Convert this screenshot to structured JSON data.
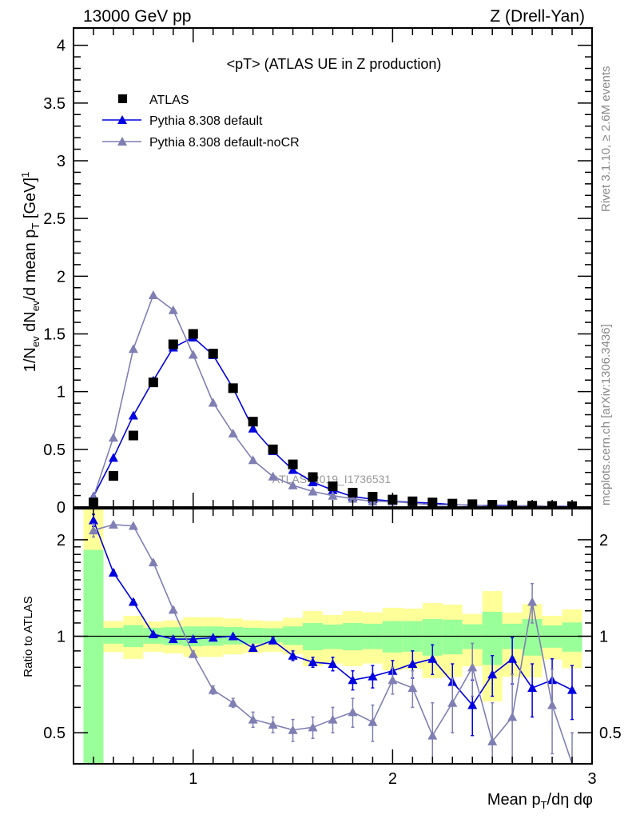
{
  "header": {
    "left": "13000 GeV pp",
    "right": "Z (Drell-Yan)"
  },
  "side_text": {
    "rivet": "Rivet 3.1.10, ≥ 2.6M events",
    "mcplots": "mcplots.cern.ch [arXiv:1306.3436]"
  },
  "watermark": "ATLAS_2019_I1736531",
  "colors": {
    "atlas": "#000000",
    "default": "#0000e0",
    "nocr": "#7f7fb4",
    "band_stat": "#99ff99",
    "band_total": "#ffff99"
  },
  "chart_data": [
    {
      "type": "scatter",
      "title": "<pT> (ATLAS UE in Z production)",
      "ylabel": "1/N",
      "ylabel_parts": {
        "a": "1/N",
        "b": "ev",
        "c": " dN",
        "d": "ev",
        "e": "/d mean p",
        "f": "T",
        "g": " [GeV]",
        "h": "1"
      },
      "xlim": [
        0.4,
        3.0
      ],
      "ylim": [
        0,
        4.15
      ],
      "yticks": [
        "0",
        "0.5",
        "1",
        "1.5",
        "2",
        "2.5",
        "3",
        "3.5",
        "4"
      ],
      "legend_position": "top-left",
      "x": [
        0.5,
        0.6,
        0.7,
        0.8,
        0.9,
        1.0,
        1.1,
        1.2,
        1.3,
        1.4,
        1.5,
        1.6,
        1.7,
        1.8,
        1.9,
        2.0,
        2.1,
        2.2,
        2.3,
        2.4,
        2.5,
        2.6,
        2.7,
        2.8,
        2.9
      ],
      "series": [
        {
          "name": "ATLAS",
          "marker": "square",
          "values": [
            0.04,
            0.27,
            0.62,
            1.08,
            1.41,
            1.5,
            1.33,
            1.03,
            0.74,
            0.5,
            0.37,
            0.26,
            0.18,
            0.125,
            0.09,
            0.065,
            0.05,
            0.04,
            0.03,
            0.025,
            0.02,
            0.015,
            0.012,
            0.01,
            0.008
          ]
        },
        {
          "name": "Pythia 8.308 default",
          "marker": "triangle",
          "ratio": [
            2.3,
            1.58,
            1.28,
            1.015,
            0.98,
            0.98,
            0.99,
            1.0,
            0.92,
            0.97,
            0.87,
            0.83,
            0.82,
            0.73,
            0.75,
            0.78,
            0.82,
            0.85,
            0.72,
            0.61,
            0.76,
            0.85,
            0.69,
            0.73,
            0.68
          ],
          "ratio_err": [
            0.1,
            0.03,
            0.02,
            0.01,
            0.01,
            0.01,
            0.01,
            0.01,
            0.02,
            0.02,
            0.03,
            0.03,
            0.04,
            0.05,
            0.06,
            0.06,
            0.08,
            0.09,
            0.1,
            0.12,
            0.11,
            0.14,
            0.13,
            0.12,
            0.13
          ]
        },
        {
          "name": "Pythia 8.308 default-noCR",
          "marker": "triangle",
          "ratio": [
            2.14,
            2.23,
            2.21,
            1.7,
            1.21,
            0.88,
            0.68,
            0.62,
            0.55,
            0.53,
            0.51,
            0.52,
            0.55,
            0.58,
            0.54,
            0.73,
            0.69,
            0.49,
            0.62,
            0.8,
            0.47,
            0.56,
            1.28,
            0.61,
            0.3
          ],
          "ratio_err": [
            0.1,
            0.03,
            0.02,
            0.02,
            0.02,
            0.02,
            0.02,
            0.02,
            0.03,
            0.03,
            0.04,
            0.04,
            0.05,
            0.06,
            0.07,
            0.07,
            0.09,
            0.13,
            0.12,
            0.15,
            0.15,
            0.2,
            0.18,
            0.18,
            0.2
          ]
        }
      ]
    },
    {
      "type": "scatter",
      "ylabel": "Ratio to ATLAS",
      "xlabel_parts": {
        "a": "Mean p",
        "b": "T",
        "c": "/dη dφ"
      },
      "xlim": [
        0.4,
        3.0
      ],
      "xticks": [
        "1",
        "2",
        "3"
      ],
      "ylim": [
        0.4,
        2.5
      ],
      "yscale": "log",
      "yticks": [
        "0.5",
        "1",
        "2"
      ],
      "bands": {
        "stat_hi": [
          1.86,
          1.063,
          1.083,
          1.063,
          1.067,
          1.073,
          1.073,
          1.069,
          1.063,
          1.059,
          1.073,
          1.1,
          1.088,
          1.1,
          1.094,
          1.115,
          1.115,
          1.132,
          1.126,
          1.09,
          1.192,
          1.094,
          1.132,
          1.081,
          1.104
        ],
        "stat_lo": [
          0.3,
          0.948,
          0.925,
          0.948,
          0.939,
          0.93,
          0.934,
          0.943,
          0.948,
          0.957,
          0.939,
          0.904,
          0.912,
          0.904,
          0.912,
          0.89,
          0.895,
          0.87,
          0.878,
          0.912,
          0.814,
          0.912,
          0.87,
          0.921,
          0.895
        ],
        "tot_hi": [
          2.6,
          1.115,
          1.158,
          1.111,
          1.121,
          1.147,
          1.147,
          1.136,
          1.121,
          1.115,
          1.141,
          1.199,
          1.165,
          1.199,
          1.188,
          1.227,
          1.22,
          1.269,
          1.255,
          1.174,
          1.383,
          1.185,
          1.26,
          1.158,
          1.213
        ],
        "tot_lo": [
          0.3,
          0.892,
          0.85,
          0.895,
          0.884,
          0.862,
          0.862,
          0.878,
          0.887,
          0.895,
          0.878,
          0.806,
          0.822,
          0.806,
          0.822,
          0.783,
          0.791,
          0.74,
          0.747,
          0.806,
          0.626,
          0.747,
          0.744,
          0.846,
          0.795
        ]
      }
    }
  ]
}
